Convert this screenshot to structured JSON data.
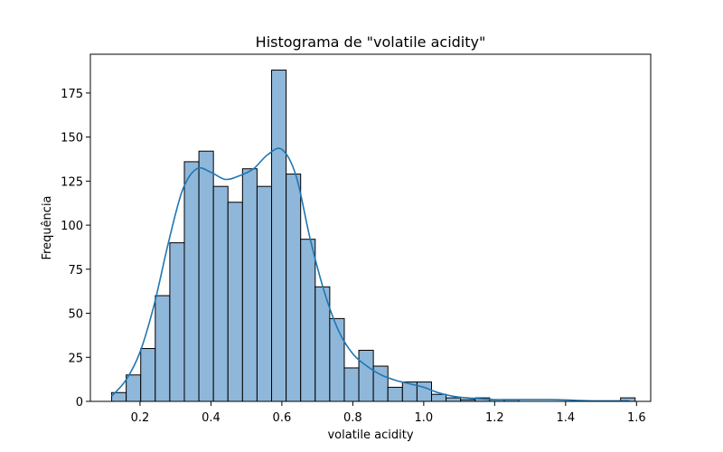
{
  "chart_data": {
    "type": "bar",
    "title": "Histograma de \"volatile acidity\"",
    "xlabel": "volatile acidity",
    "ylabel": "Frequência",
    "xlim": [
      0.06,
      1.64
    ],
    "ylim": [
      0,
      197
    ],
    "xticks": [
      0.2,
      0.4,
      0.6,
      0.8,
      1.0,
      1.2,
      1.4,
      1.6
    ],
    "xtick_labels": [
      "0.2",
      "0.4",
      "0.6",
      "0.8",
      "1.0",
      "1.2",
      "1.4",
      "1.6"
    ],
    "yticks": [
      0,
      25,
      50,
      75,
      100,
      125,
      150,
      175
    ],
    "ytick_labels": [
      "0",
      "25",
      "50",
      "75",
      "100",
      "125",
      "150",
      "175"
    ],
    "bin_start": 0.12,
    "bin_width": 0.041,
    "values": [
      5,
      15,
      30,
      60,
      90,
      136,
      142,
      122,
      113,
      132,
      122,
      188,
      129,
      92,
      65,
      47,
      19,
      29,
      20,
      8,
      11,
      11,
      4,
      2,
      1,
      2,
      1,
      1,
      0,
      0,
      0,
      0,
      0,
      0,
      0,
      2
    ],
    "kde": {
      "x": [
        0.12,
        0.16,
        0.2,
        0.24,
        0.28,
        0.32,
        0.36,
        0.4,
        0.44,
        0.48,
        0.52,
        0.56,
        0.6,
        0.64,
        0.68,
        0.72,
        0.76,
        0.8,
        0.84,
        0.88,
        0.92,
        0.96,
        1.0,
        1.04,
        1.08,
        1.12,
        1.16,
        1.2,
        1.24,
        1.28,
        1.32,
        1.36,
        1.4,
        1.44,
        1.48,
        1.52,
        1.58
      ],
      "y": [
        3,
        12,
        28,
        55,
        90,
        120,
        132,
        130,
        126,
        128,
        132,
        140,
        143,
        128,
        92,
        62,
        40,
        27,
        20,
        15,
        12,
        10,
        8,
        5,
        3,
        2,
        1.5,
        1,
        1,
        1,
        1,
        1,
        0.8,
        0.5,
        0.3,
        0.3,
        0.3
      ]
    },
    "grid": false,
    "legend": "none",
    "colors": {
      "bar_fill": "#8fb7da",
      "bar_edge": "#000000",
      "kde_line": "#1f77b4"
    }
  }
}
